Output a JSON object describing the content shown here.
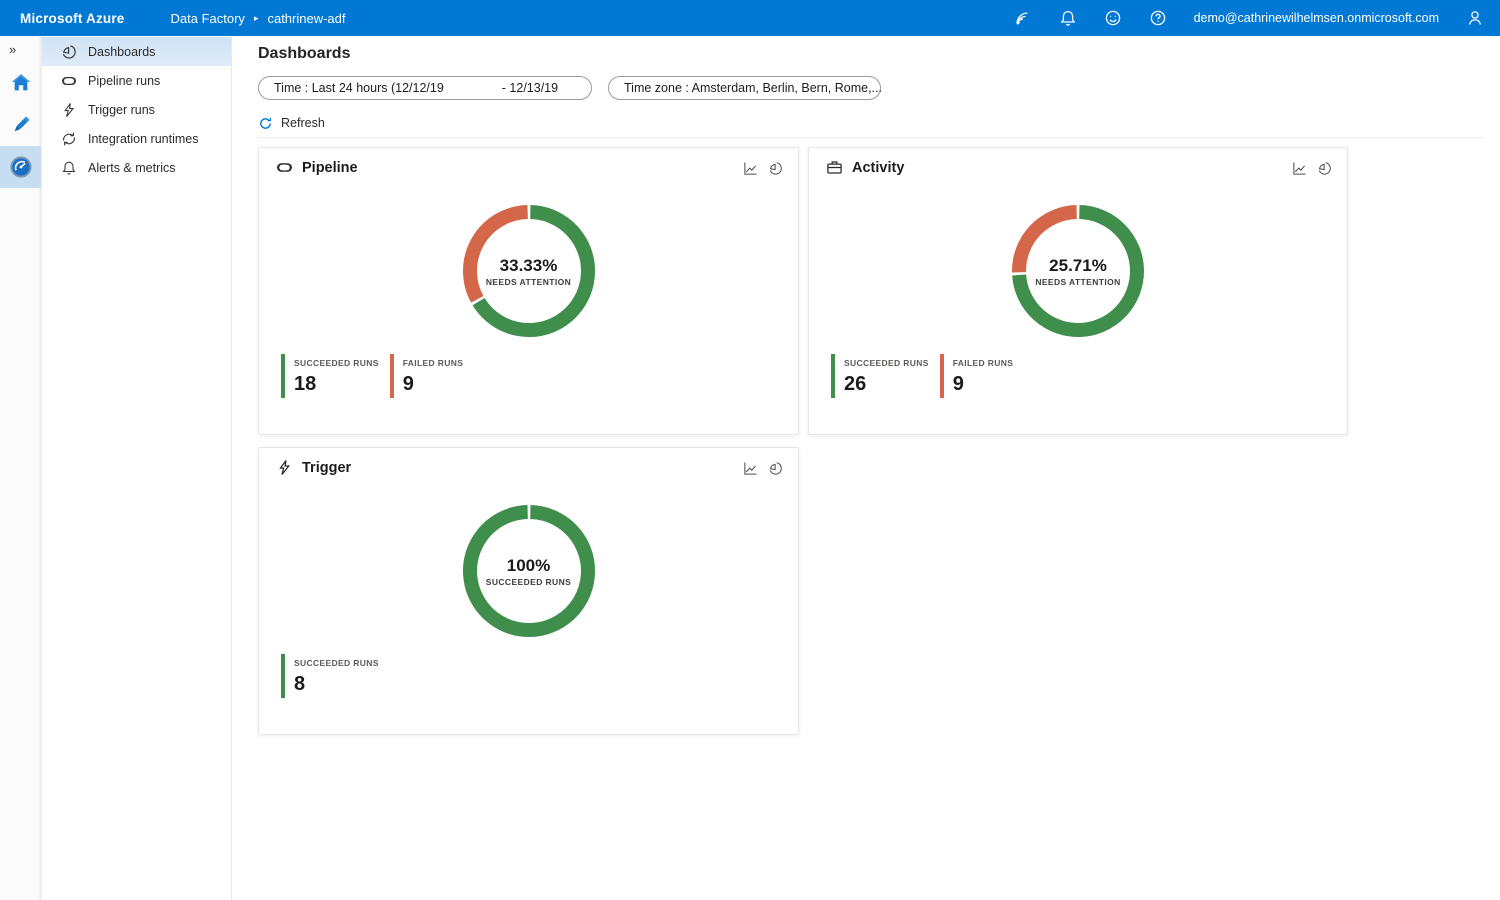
{
  "topbar": {
    "brand": "Microsoft Azure",
    "breadcrumb_root": "Data Factory",
    "breadcrumb_sep": "▸",
    "breadcrumb_current": "cathrinew-adf",
    "email": "demo@cathrinewilhelmsen.onmicrosoft.com",
    "bg_color": "#0078d4"
  },
  "sidebar": {
    "collapse_glyph": "»",
    "menu": [
      {
        "label": "Dashboards",
        "selected": true
      },
      {
        "label": "Pipeline runs",
        "selected": false
      },
      {
        "label": "Trigger runs",
        "selected": false
      },
      {
        "label": "Integration runtimes",
        "selected": false
      },
      {
        "label": "Alerts & metrics",
        "selected": false
      }
    ]
  },
  "page": {
    "title": "Dashboards"
  },
  "filters": {
    "time_label": "Time : Last 24 hours (12/12/19",
    "time_end": "- 12/13/19",
    "timezone_label": "Time zone : Amsterdam, Berlin, Bern, Rome,..."
  },
  "toolbar": {
    "refresh_label": "Refresh"
  },
  "colors": {
    "succeeded": "#3f8e4c",
    "failed": "#d4664a"
  },
  "chart_data": [
    {
      "type": "pie",
      "title": "Pipeline",
      "center_value": "33.33%",
      "center_label": "NEEDS ATTENTION",
      "segments": [
        {
          "name": "Succeeded runs",
          "value": 66.67,
          "color": "#3f8e4c"
        },
        {
          "name": "Failed runs",
          "value": 33.33,
          "color": "#d4664a"
        }
      ],
      "stats": [
        {
          "label": "SUCCEEDED RUNS",
          "value": "18",
          "color": "#3f8e4c"
        },
        {
          "label": "FAILED RUNS",
          "value": "9",
          "color": "#d4664a"
        }
      ]
    },
    {
      "type": "pie",
      "title": "Activity",
      "center_value": "25.71%",
      "center_label": "NEEDS ATTENTION",
      "segments": [
        {
          "name": "Succeeded runs",
          "value": 74.29,
          "color": "#3f8e4c"
        },
        {
          "name": "Failed runs",
          "value": 25.71,
          "color": "#d4664a"
        }
      ],
      "stats": [
        {
          "label": "SUCCEEDED RUNS",
          "value": "26",
          "color": "#3f8e4c"
        },
        {
          "label": "FAILED RUNS",
          "value": "9",
          "color": "#d4664a"
        }
      ]
    },
    {
      "type": "pie",
      "title": "Trigger",
      "center_value": "100%",
      "center_label": "SUCCEEDED RUNS",
      "segments": [
        {
          "name": "Succeeded runs",
          "value": 100,
          "color": "#3f8e4c"
        }
      ],
      "stats": [
        {
          "label": "SUCCEEDED RUNS",
          "value": "8",
          "color": "#3f8e4c"
        }
      ]
    }
  ]
}
